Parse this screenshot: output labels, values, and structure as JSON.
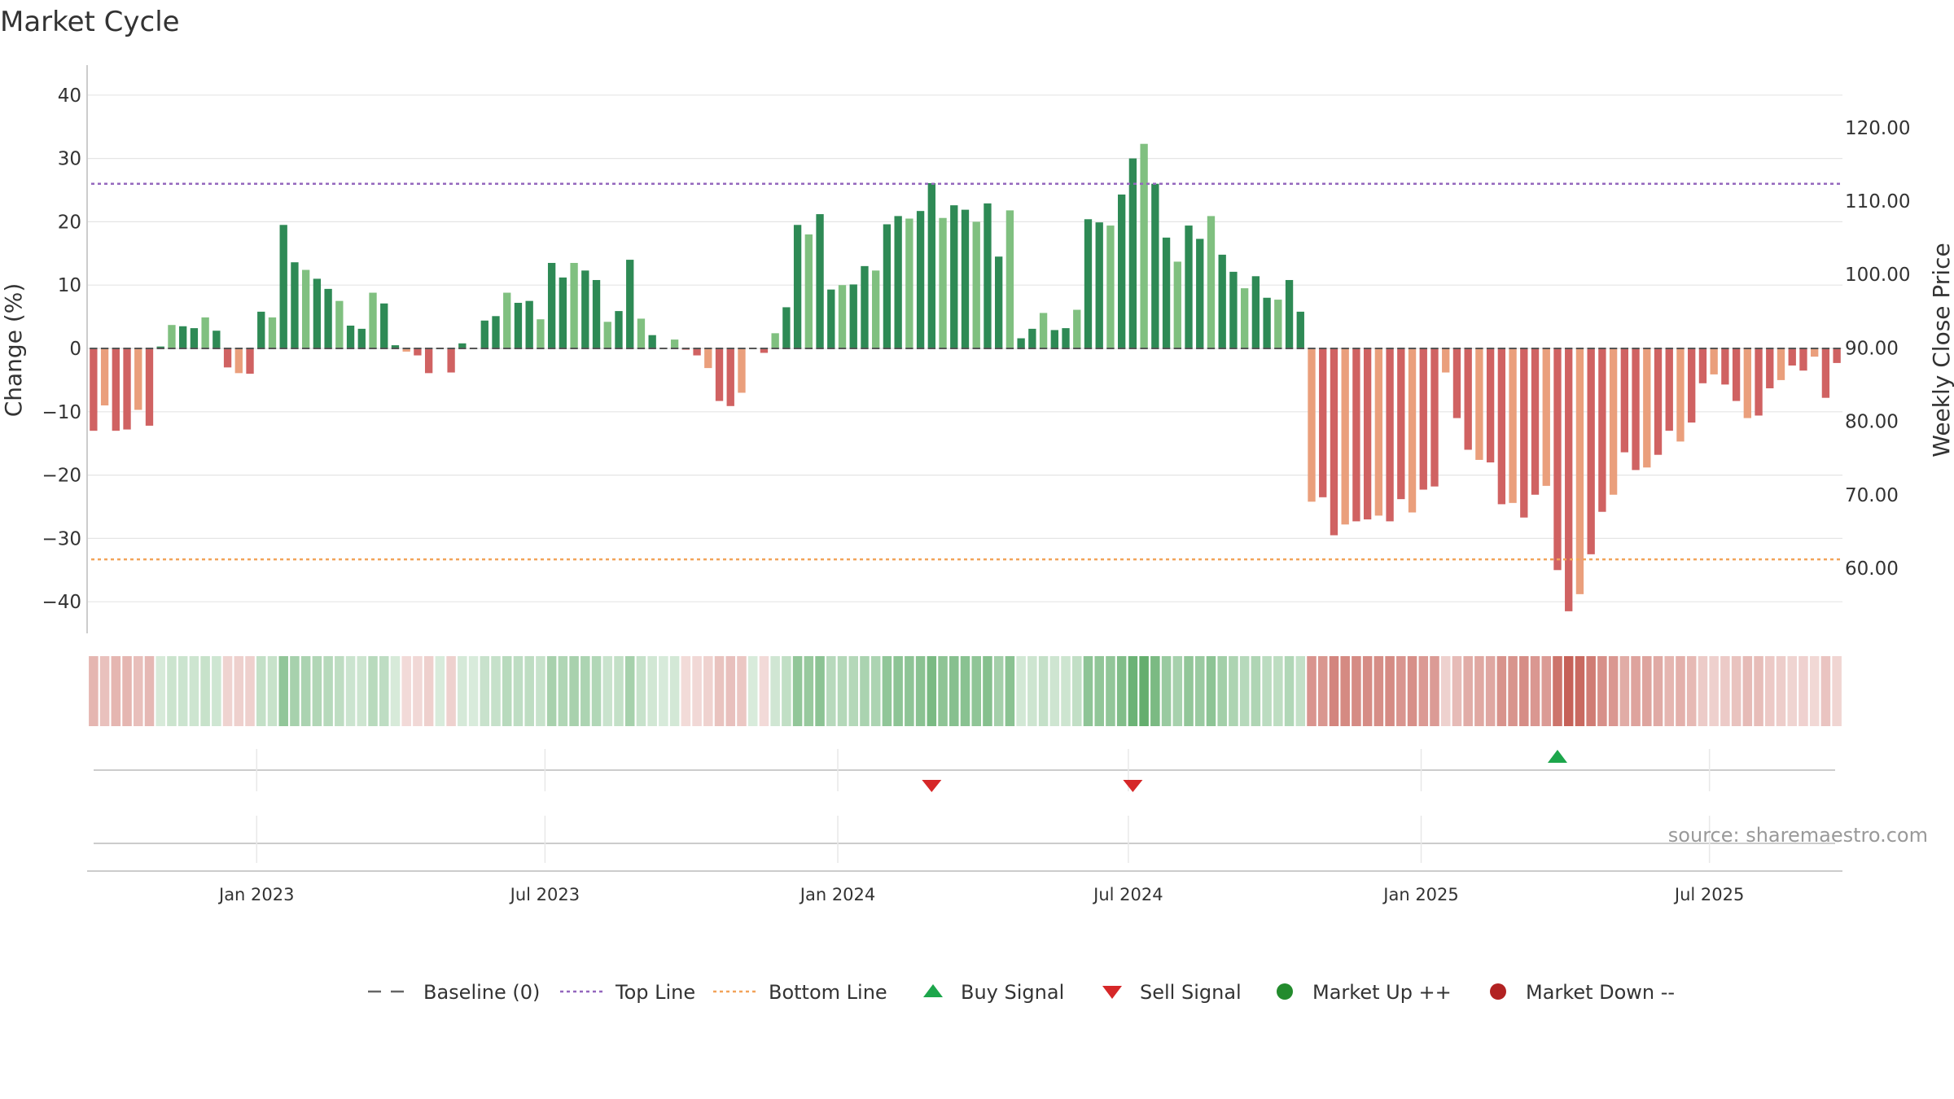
{
  "chart_data": {
    "type": "bar",
    "title": "Market Cycle",
    "ylabel": "Change (%)",
    "y2label": "Weekly Close Price",
    "ylim": [
      -45,
      45
    ],
    "y2lim": [
      50,
      127
    ],
    "yticks": [
      40,
      30,
      20,
      10,
      0,
      -10,
      -20,
      -30,
      -40
    ],
    "y2ticks": [
      "120.00",
      "110.00",
      "100.00",
      "90.00",
      "80.00",
      "70.00",
      "60.00"
    ],
    "top_line": 26,
    "bottom_line": -33.3,
    "x_start_week": 0,
    "x_ticks": [
      {
        "label": "Jan 2023",
        "week": 14.6
      },
      {
        "label": "Jul 2023",
        "week": 40.4
      },
      {
        "label": "Jan 2024",
        "week": 66.6
      },
      {
        "label": "Jul 2024",
        "week": 92.6
      },
      {
        "label": "Jan 2025",
        "week": 118.8
      },
      {
        "label": "Jul 2025",
        "week": 144.6
      }
    ],
    "values": [
      -13,
      -9,
      -13,
      -12.8,
      -9.7,
      -12.2,
      0.3,
      3.7,
      3.5,
      3.2,
      4.9,
      2.8,
      -3,
      -3.9,
      -4,
      5.8,
      4.9,
      19.5,
      13.6,
      12.4,
      11,
      9.4,
      7.5,
      3.6,
      3.1,
      8.8,
      7.1,
      0.5,
      -0.5,
      -1.1,
      -3.9,
      0,
      -3.8,
      0.8,
      0,
      4.4,
      5.1,
      8.8,
      7.2,
      7.5,
      4.6,
      13.5,
      11.2,
      13.5,
      12.3,
      10.8,
      4.2,
      5.9,
      14,
      4.7,
      2.1,
      0.1,
      1.4,
      -0.2,
      -1.1,
      -3.1,
      -8.3,
      -9.1,
      -7,
      0,
      -0.7,
      2.4,
      6.5,
      19.5,
      18,
      21.2,
      9.3,
      10,
      10.1,
      13,
      12.3,
      19.6,
      20.9,
      20.5,
      21.7,
      26.1,
      20.6,
      22.6,
      21.9,
      20,
      22.9,
      14.5,
      21.8,
      1.6,
      3.1,
      5.6,
      2.9,
      3.2,
      6.1,
      20.4,
      19.9,
      19.4,
      24.3,
      30,
      32.3,
      26,
      17.5,
      13.7,
      19.4,
      17.3,
      20.9,
      14.8,
      12.1,
      9.5,
      11.4,
      8,
      7.7,
      10.8,
      5.8,
      -24.2,
      -23.5,
      -29.5,
      -27.8,
      -27.3,
      -27,
      -26.4,
      -27.3,
      -23.8,
      -25.9,
      -22.3,
      -21.8,
      -3.8,
      -11,
      -16,
      -17.6,
      -18,
      -24.6,
      -24.4,
      -26.7,
      -23.1,
      -21.7,
      -35,
      -41.5,
      -38.8,
      -32.5,
      -25.8,
      -23.1,
      -16.4,
      -19.2,
      -18.8,
      -16.8,
      -13,
      -14.7,
      -11.7,
      -5.5,
      -4.1,
      -5.7,
      -8.3,
      -11,
      -10.6,
      -6.3,
      -5,
      -2.7,
      -3.5,
      -1.3,
      -7.8,
      -2.3
    ],
    "markers": [
      {
        "type": "sell",
        "week": 75
      },
      {
        "type": "sell",
        "week": 93
      },
      {
        "type": "buy",
        "week": 131
      }
    ],
    "legend": [
      {
        "label": "Baseline (0)",
        "symbol": "dash",
        "color": "#666666"
      },
      {
        "label": "Top Line",
        "symbol": "dot-purple",
        "color": "#9467bd"
      },
      {
        "label": "Bottom Line",
        "symbol": "dot-orange",
        "color": "#f2a35a"
      },
      {
        "label": "Buy Signal",
        "symbol": "up",
        "color": "#1ca64b"
      },
      {
        "label": "Sell Signal",
        "symbol": "down",
        "color": "#d62728"
      },
      {
        "label": "Market Up ++",
        "symbol": "circle",
        "color": "#238b2d"
      },
      {
        "label": "Market Down --",
        "symbol": "circle",
        "color": "#b22222"
      }
    ],
    "source": "source: sharemaestro.com"
  },
  "colors": {
    "up_strong": "#2e8a55",
    "up_light": "#80c080",
    "down_strong": "#d06262",
    "down_light": "#ea9f7c",
    "grid": "#e5e5e5",
    "top_line": "#9467bd",
    "bottom_line": "#f2a35a"
  }
}
